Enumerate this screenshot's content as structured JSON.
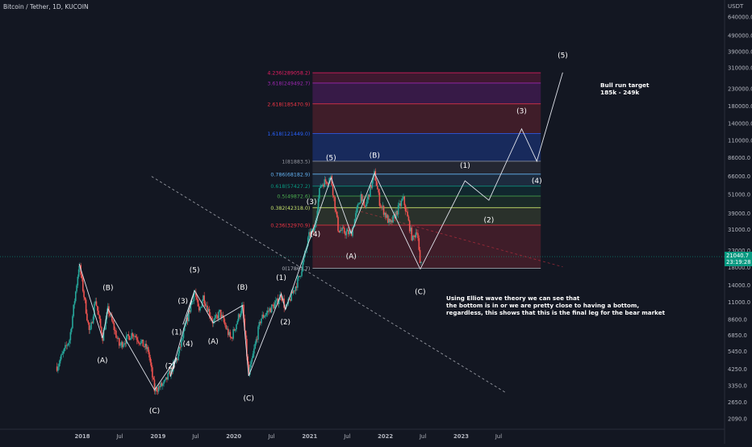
{
  "header": {
    "symbol_line": "Bitcoin / Tether, 1D, KUCOIN"
  },
  "axis_unit": "USDT",
  "price_badge": {
    "price": "21040.7",
    "countdown": "23:19:28",
    "color": "#089981"
  },
  "annotations": {
    "target_title": "Bull run target",
    "target_range": "185k - 249k",
    "note_lines": [
      "Using Elliot wave theory we can see that",
      "the bottom is in or we are pretty close to having a bottom,",
      "regardless, this shows that this is the final leg for the bear market"
    ]
  },
  "chart_data": {
    "type": "line",
    "title": "Bitcoin / Tether, 1D, KUCOIN",
    "scale": "log",
    "ylim": [
      1800,
      900000
    ],
    "x_range": [
      "2017-09",
      "2024-05"
    ],
    "y_ticks": [
      "640000.0",
      "490000.0",
      "390000.0",
      "310000.0",
      "230000.0",
      "180000.0",
      "140000.0",
      "110000.0",
      "86000.0",
      "66000.0",
      "51000.0",
      "39000.0",
      "31000.0",
      "23000.0",
      "18000.0",
      "14000.0",
      "11000.0",
      "8600.0",
      "6850.0",
      "5450.0",
      "4250.0",
      "3350.0",
      "2650.0",
      "2090.0"
    ],
    "x_ticks": [
      {
        "label": "2018",
        "t": "2018-01-01"
      },
      {
        "label": "Jul",
        "t": "2018-07-01"
      },
      {
        "label": "2019",
        "t": "2019-01-01"
      },
      {
        "label": "Jul",
        "t": "2019-07-01"
      },
      {
        "label": "2020",
        "t": "2020-01-01"
      },
      {
        "label": "Jul",
        "t": "2020-07-01"
      },
      {
        "label": "2021",
        "t": "2021-01-01"
      },
      {
        "label": "Jul",
        "t": "2021-07-01"
      },
      {
        "label": "2022",
        "t": "2022-01-01"
      },
      {
        "label": "Jul",
        "t": "2022-07-01"
      },
      {
        "label": "2023",
        "t": "2023-01-01"
      },
      {
        "label": "Jul",
        "t": "2023-07-01"
      }
    ],
    "fib_levels": [
      {
        "label": "0(17861.7)",
        "value": 17861.7,
        "color": "#b2b5be"
      },
      {
        "label": "0.236(32970.9)",
        "value": 32970.9,
        "color": "#f23645"
      },
      {
        "label": "0.382(42318.0)",
        "value": 42318.0,
        "color": "#c6e36b"
      },
      {
        "label": "0.5(49872.6)",
        "value": 49872.6,
        "color": "#4caf50"
      },
      {
        "label": "0.618(57427.2)",
        "value": 57427.2,
        "color": "#089981"
      },
      {
        "label": "0.786(68182.9)",
        "value": 68182.9,
        "color": "#64b5f6"
      },
      {
        "label": "1(81883.5)",
        "value": 81883.5,
        "color": "#9598a1"
      },
      {
        "label": "1.618(121449.0)",
        "value": 121449.0,
        "color": "#2962ff"
      },
      {
        "label": "2.618(185470.9)",
        "value": 185470.9,
        "color": "#f23645"
      },
      {
        "label": "3.618(249492.7)",
        "value": 249492.7,
        "color": "#9c27b0"
      },
      {
        "label": "4.236(289058.2)",
        "value": 289058.2,
        "color": "#e91e63"
      }
    ],
    "fib_range": {
      "start": "2021-01-15",
      "end": "2024-01-20"
    },
    "fib_fills": [
      "#f2364533",
      "#c6e36b22",
      "#4caf5022",
      "#08998122",
      "#64b5f622",
      "#9598a122",
      "#2962ff44",
      "#f2364533",
      "#9c27b044",
      "#e91e6333"
    ],
    "wave_paths": [
      {
        "name": "correction-2018",
        "points": [
          [
            "2017-12-17",
            19000
          ],
          [
            "2018-04-08",
            6600
          ],
          [
            "2018-05-05",
            10000
          ],
          [
            "2018-12-15",
            3150
          ]
        ]
      },
      {
        "name": "impulse-2019",
        "points": [
          [
            "2018-12-15",
            3150
          ],
          [
            "2019-04-01",
            5000
          ],
          [
            "2019-03-01",
            3800
          ],
          [
            "2019-06-26",
            13000
          ],
          [
            "2019-05-01",
            8000
          ],
          [
            "2019-06-26",
            13000
          ]
        ]
      },
      {
        "name": "correction-2019",
        "points": [
          [
            "2019-06-26",
            13000
          ],
          [
            "2019-09-24",
            8200
          ],
          [
            "2020-02-12",
            10500
          ],
          [
            "2020-03-13",
            3850
          ]
        ]
      },
      {
        "name": "impulse-2020",
        "points": [
          [
            "2020-03-13",
            3850
          ],
          [
            "2020-08-17",
            12400
          ],
          [
            "2020-09-06",
            9900
          ],
          [
            "2021-04-14",
            64800
          ]
        ]
      },
      {
        "name": "correction-2021",
        "points": [
          [
            "2021-04-14",
            64800
          ],
          [
            "2021-07-20",
            29300
          ],
          [
            "2021-11-10",
            69000
          ],
          [
            "2022-06-18",
            17600
          ]
        ]
      },
      {
        "name": "projection",
        "points": [
          [
            "2022-06-18",
            17600
          ],
          [
            "2023-01-20",
            62000
          ],
          [
            "2023-05-15",
            47000
          ],
          [
            "2023-10-20",
            130000
          ],
          [
            "2024-01-01",
            82000
          ],
          [
            "2024-05-05",
            290000
          ]
        ]
      }
    ],
    "wave_labels": [
      {
        "text": "(B)",
        "t": "2018-05-05",
        "price": 13500
      },
      {
        "text": "(A)",
        "t": "2018-04-08",
        "price": 4800
      },
      {
        "text": "(C)",
        "t": "2018-12-15",
        "price": 2350
      },
      {
        "text": "(1)",
        "t": "2019-04-01",
        "price": 7200
      },
      {
        "text": "(2)",
        "t": "2019-03-01",
        "price": 4450
      },
      {
        "text": "(3)",
        "t": "2019-05-01",
        "price": 11200
      },
      {
        "text": "(4)",
        "t": "2019-05-25",
        "price": 6100
      },
      {
        "text": "(5)",
        "t": "2019-06-26",
        "price": 17400
      },
      {
        "text": "(A)",
        "t": "2019-09-24",
        "price": 6300
      },
      {
        "text": "(B)",
        "t": "2020-02-12",
        "price": 13600
      },
      {
        "text": "(C)",
        "t": "2020-03-13",
        "price": 2800
      },
      {
        "text": "(1)",
        "t": "2020-08-17",
        "price": 15600
      },
      {
        "text": "(2)",
        "t": "2020-09-06",
        "price": 8300
      },
      {
        "text": "(3)",
        "t": "2021-01-10",
        "price": 46000
      },
      {
        "text": "(4)",
        "t": "2021-01-28",
        "price": 29000
      },
      {
        "text": "(5)",
        "t": "2021-04-14",
        "price": 86000
      },
      {
        "text": "(A)",
        "t": "2021-07-20",
        "price": 21200
      },
      {
        "text": "(B)",
        "t": "2021-11-10",
        "price": 89000
      },
      {
        "text": "(C)",
        "t": "2022-06-18",
        "price": 12800
      },
      {
        "text": "(1)",
        "t": "2023-01-20",
        "price": 77000
      },
      {
        "text": "(2)",
        "t": "2023-05-15",
        "price": 35500
      },
      {
        "text": "(3)",
        "t": "2023-10-20",
        "price": 168000
      },
      {
        "text": "(4)",
        "t": "2024-01-01",
        "price": 62000
      },
      {
        "text": "(5)",
        "t": "2024-05-05",
        "price": 370000
      }
    ],
    "trendlines": [
      {
        "name": "descending-dashed",
        "from": [
          "2018-12-01",
          66000
        ],
        "to": [
          "2023-08-01",
          3050
        ],
        "color": "#9598a1"
      },
      {
        "name": "resistance-dashed",
        "from": [
          "2021-09-05",
          40000
        ],
        "to": [
          "2024-05-05",
          18200
        ],
        "color": "#f2364580"
      }
    ],
    "current_price": {
      "value": 21040.7,
      "color": "#089981"
    },
    "price_series_samples": [
      [
        "2017-09-01",
        4400
      ],
      [
        "2017-11-01",
        6500
      ],
      [
        "2017-12-17",
        19000
      ],
      [
        "2018-02-06",
        6900
      ],
      [
        "2018-03-05",
        11500
      ],
      [
        "2018-04-08",
        6600
      ],
      [
        "2018-05-05",
        10000
      ],
      [
        "2018-06-29",
        5900
      ],
      [
        "2018-09-01",
        7100
      ],
      [
        "2018-11-15",
        5500
      ],
      [
        "2018-12-15",
        3150
      ],
      [
        "2019-02-01",
        3450
      ],
      [
        "2019-04-05",
        5000
      ],
      [
        "2019-06-26",
        13000
      ],
      [
        "2019-07-17",
        9400
      ],
      [
        "2019-08-06",
        12000
      ],
      [
        "2019-09-24",
        8200
      ],
      [
        "2019-10-26",
        9500
      ],
      [
        "2019-12-18",
        6450
      ],
      [
        "2020-02-12",
        10500
      ],
      [
        "2020-03-13",
        3850
      ],
      [
        "2020-05-10",
        8700
      ],
      [
        "2020-07-27",
        11000
      ],
      [
        "2020-08-17",
        12400
      ],
      [
        "2020-09-06",
        9900
      ],
      [
        "2020-11-15",
        16000
      ],
      [
        "2020-12-31",
        29000
      ],
      [
        "2021-01-22",
        30500
      ],
      [
        "2021-02-21",
        58000
      ],
      [
        "2021-03-13",
        61000
      ],
      [
        "2021-04-14",
        64800
      ],
      [
        "2021-05-19",
        31000
      ],
      [
        "2021-06-22",
        29800
      ],
      [
        "2021-07-20",
        29300
      ],
      [
        "2021-09-07",
        52000
      ],
      [
        "2021-09-21",
        40500
      ],
      [
        "2021-11-10",
        69000
      ],
      [
        "2021-12-04",
        46000
      ],
      [
        "2022-01-24",
        33000
      ],
      [
        "2022-03-28",
        48000
      ],
      [
        "2022-05-12",
        26700
      ],
      [
        "2022-06-04",
        31500
      ],
      [
        "2022-06-18",
        17600
      ],
      [
        "2022-06-25",
        21040
      ]
    ]
  }
}
